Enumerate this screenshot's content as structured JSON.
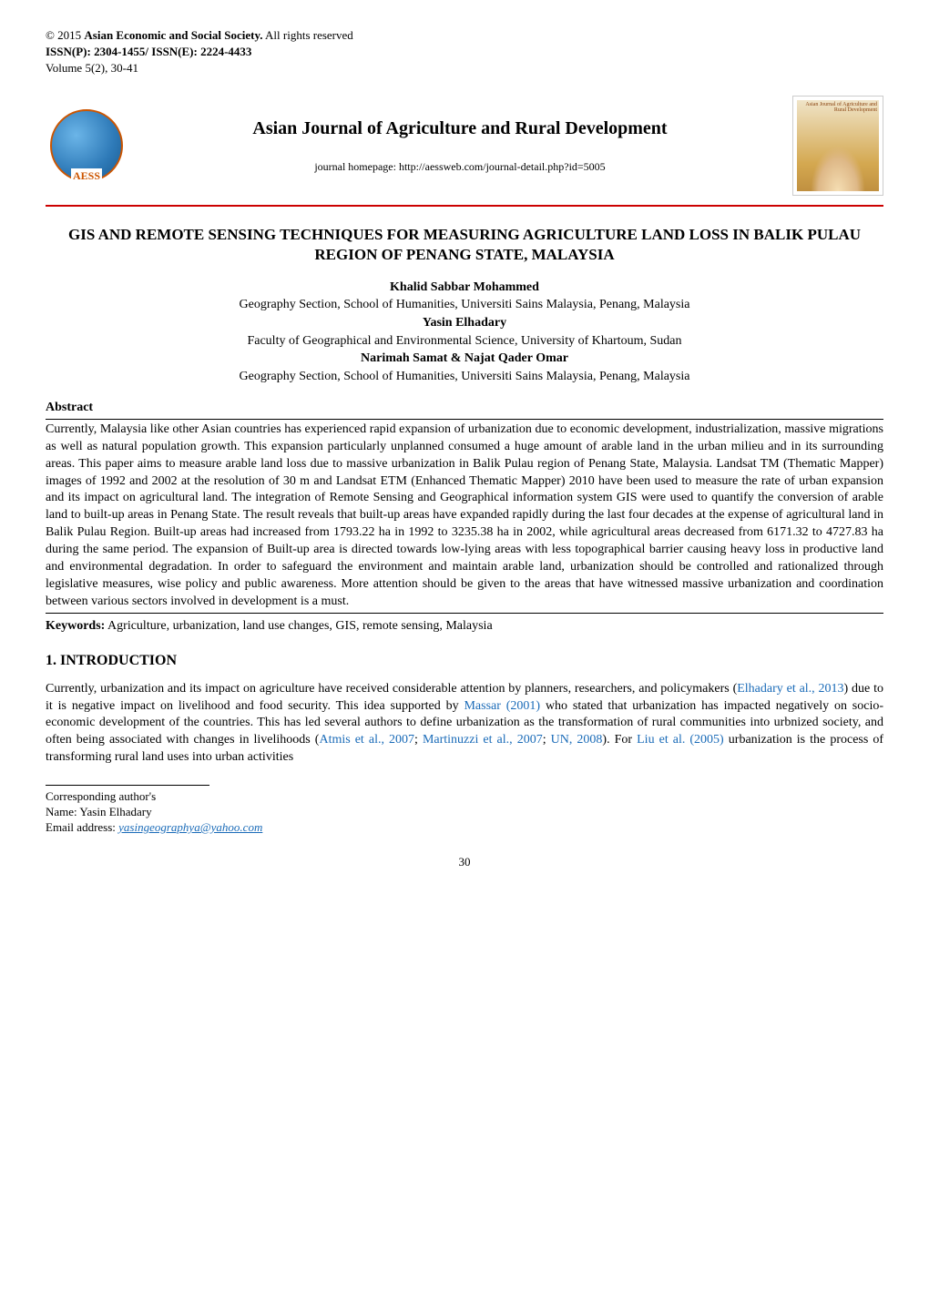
{
  "header": {
    "copyright_prefix": "© 2015 ",
    "society": "Asian Economic and Social Society.",
    "rights": " All rights reserved",
    "issn": "ISSN(P): 2304-1455/ ISSN(E): 2224-4433",
    "volume": "Volume 5(2), 30-41"
  },
  "banner": {
    "journal_title": "Asian Journal of Agriculture and Rural Development",
    "homepage": "journal homepage: http://aessweb.com/journal-detail.php?id=5005",
    "cover_label": "Asian Journal of Agriculture and Rural Development",
    "logo_text": "AESS"
  },
  "paper": {
    "title": "GIS AND REMOTE SENSING TECHNIQUES FOR MEASURING AGRICULTURE LAND LOSS IN BALIK PULAU REGION OF PENANG STATE, MALAYSIA",
    "authors": [
      {
        "name": "Khalid Sabbar Mohammed",
        "affiliation": "Geography Section, School of Humanities, Universiti Sains Malaysia, Penang, Malaysia"
      },
      {
        "name": "Yasin Elhadary",
        "affiliation": "Faculty of Geographical and Environmental Science, University of Khartoum, Sudan"
      },
      {
        "name": "Narimah Samat & Najat Qader Omar",
        "affiliation": "Geography Section, School of Humanities, Universiti Sains Malaysia, Penang, Malaysia"
      }
    ]
  },
  "abstract": {
    "heading": "Abstract",
    "text": "Currently, Malaysia like other Asian countries has experienced rapid expansion of urbanization due to economic development, industrialization, massive migrations as well as natural population growth. This expansion particularly unplanned consumed a huge amount of arable land in the urban milieu and in its surrounding areas. This paper aims to measure arable land loss due to massive urbanization in Balik Pulau region of Penang State, Malaysia. Landsat TM (Thematic Mapper) images of 1992 and 2002 at the resolution of 30 m and Landsat ETM (Enhanced Thematic Mapper) 2010 have been used to measure the rate of urban expansion and its impact on agricultural land. The integration of Remote Sensing and Geographical information system GIS were used to quantify the conversion of arable land to built-up areas in Penang State. The result reveals that built-up areas have expanded rapidly during the last four decades at the expense of agricultural land in Balik Pulau Region. Built-up areas had increased from 1793.22 ha in 1992 to 3235.38 ha in 2002, while agricultural areas decreased from 6171.32 to 4727.83 ha during the same period. The expansion of Built-up area is directed towards low-lying areas with less topographical barrier causing heavy loss in productive land and environmental degradation. In order to safeguard the environment and maintain arable land, urbanization should be controlled and rationalized through legislative measures, wise policy and public awareness. More attention should be given to the areas that have witnessed massive urbanization and coordination between various sectors involved in development is a must."
  },
  "keywords": {
    "label": "Keywords:",
    "text": " Agriculture, urbanization, land use changes, GIS, remote sensing, Malaysia"
  },
  "introduction": {
    "heading": "1. INTRODUCTION",
    "body_parts": [
      "Currently, urbanization and its impact on agriculture have received considerable attention by planners, researchers, and policymakers (",
      "Elhadary et al., 2013",
      ") due to it is negative impact on livelihood and food security. This idea supported by ",
      "Massar (2001)",
      " who stated that urbanization has impacted negatively on socio-economic development of the countries. This has led several authors to define urbanization as the transformation of rural communities into urbnized society, and often being associated with changes in livelihoods (",
      "Atmis et al., 2007",
      "; ",
      "Martinuzzi et al., 2007",
      "; ",
      "UN, 2008",
      "). For ",
      "Liu et al. (2005)",
      " urbanization is the process of transforming rural land uses into urban activities"
    ]
  },
  "footnote": {
    "corresponding": "Corresponding author's",
    "name_label": "Name: ",
    "name": "Yasin Elhadary",
    "email_label": "Email address: ",
    "email": "yasingeographya@yahoo.com"
  },
  "page_number": "30",
  "colors": {
    "citation": "#1a6bb8",
    "rule": "#cc0000",
    "text": "#000000"
  }
}
